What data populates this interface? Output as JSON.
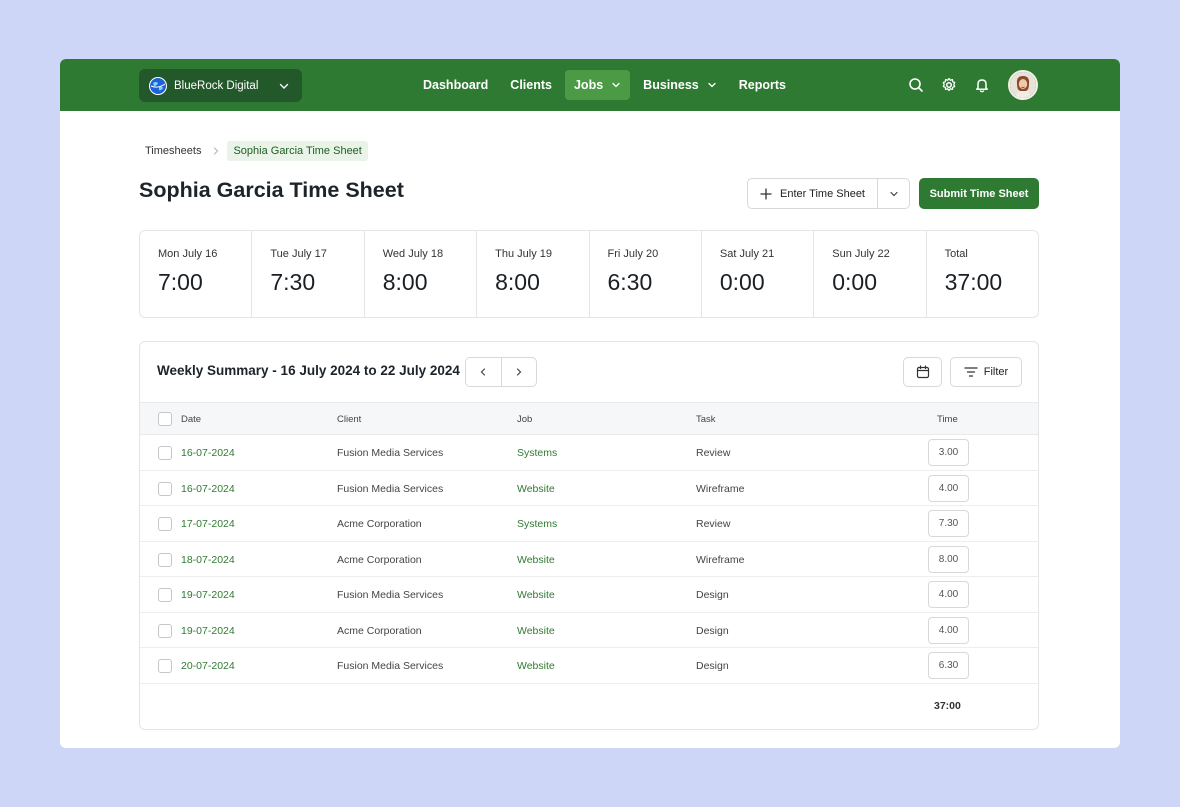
{
  "org": {
    "name": "BlueRock Digital"
  },
  "nav": [
    {
      "label": "Dashboard",
      "active": false,
      "has_menu": false
    },
    {
      "label": "Clients",
      "active": false,
      "has_menu": false
    },
    {
      "label": "Jobs",
      "active": true,
      "has_menu": true
    },
    {
      "label": "Business",
      "active": false,
      "has_menu": true
    },
    {
      "label": "Reports",
      "active": false,
      "has_menu": false
    }
  ],
  "header_icons": [
    "search-icon",
    "gear-icon",
    "bell-icon"
  ],
  "breadcrumb": {
    "parent": "Timesheets",
    "current": "Sophia Garcia Time Sheet"
  },
  "page": {
    "title": "Sophia Garcia Time Sheet",
    "enter_label": "Enter Time Sheet",
    "submit_label": "Submit Time Sheet"
  },
  "days": [
    {
      "label": "Mon July 16",
      "value": "7:00"
    },
    {
      "label": "Tue July 17",
      "value": "7:30"
    },
    {
      "label": "Wed July 18",
      "value": "8:00"
    },
    {
      "label": "Thu July 19",
      "value": "8:00"
    },
    {
      "label": "Fri July 20",
      "value": "6:30"
    },
    {
      "label": "Sat July 21",
      "value": "0:00"
    },
    {
      "label": "Sun July 22",
      "value": "0:00"
    },
    {
      "label": "Total",
      "value": "37:00"
    }
  ],
  "summary": {
    "title": "Weekly Summary - 16 July 2024 to 22 July 2024",
    "filter_label": "Filter",
    "columns": {
      "date": "Date",
      "client": "Client",
      "job": "Job",
      "task": "Task",
      "time": "Time"
    },
    "rows": [
      {
        "date": "16-07-2024",
        "client": "Fusion Media Services",
        "job": "Systems",
        "task": "Review",
        "time": "3.00"
      },
      {
        "date": "16-07-2024",
        "client": "Fusion Media Services",
        "job": "Website",
        "task": "Wireframe",
        "time": "4.00"
      },
      {
        "date": "17-07-2024",
        "client": "Acme Corporation",
        "job": "Systems",
        "task": "Review",
        "time": "7.30"
      },
      {
        "date": "18-07-2024",
        "client": "Acme Corporation",
        "job": "Website",
        "task": "Wireframe",
        "time": "8.00"
      },
      {
        "date": "19-07-2024",
        "client": "Fusion Media Services",
        "job": "Website",
        "task": "Design",
        "time": "4.00"
      },
      {
        "date": "19-07-2024",
        "client": "Acme Corporation",
        "job": "Website",
        "task": "Design",
        "time": "4.00"
      },
      {
        "date": "20-07-2024",
        "client": "Fusion Media Services",
        "job": "Website",
        "task": "Design",
        "time": "6.30"
      }
    ],
    "total": "37:00"
  },
  "colors": {
    "brand": "#2f7a32",
    "brand_dark": "#23592a",
    "background": "#cdd6f6"
  }
}
